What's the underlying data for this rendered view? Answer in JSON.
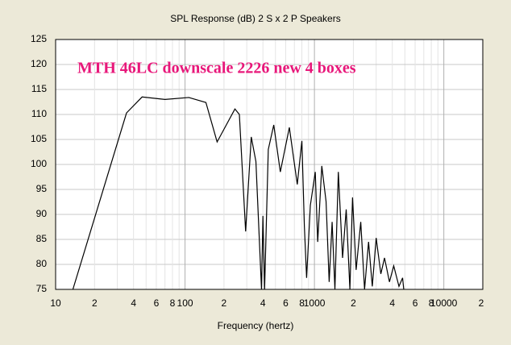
{
  "chart_data": {
    "type": "line",
    "title": "SPL Response (dB)   2 S x 2 P Speakers",
    "annotation": "MTH 46LC downscale 2226 new 4 boxes",
    "x_label": "Frequency (hertz)",
    "x_scale": "log",
    "grid": true,
    "x": [
      13.6,
      35.3,
      46.6,
      70,
      107,
      145,
      177,
      243,
      263,
      294,
      325,
      353,
      390,
      400,
      412,
      440,
      485,
      545,
      640,
      737,
      800,
      836,
      870,
      930,
      1015,
      1060,
      1140,
      1230,
      1300,
      1370,
      1440,
      1530,
      1650,
      1760,
      1880,
      1970,
      2100,
      2280,
      2440,
      2620,
      2800,
      3000,
      3260,
      3480,
      3800,
      4100,
      4500,
      4800,
      4900
    ],
    "series": [
      {
        "color": "#000000",
        "values": [
          75,
          110.3,
          113.5,
          113,
          113.4,
          112.4,
          104.5,
          111.1,
          110,
          86.6,
          105.5,
          100.6,
          75,
          89.7,
          75,
          103,
          107.9,
          98.5,
          107.4,
          96,
          104.7,
          87.7,
          77.3,
          91.8,
          98.5,
          84.5,
          99.7,
          92.6,
          76.5,
          88.5,
          75,
          98.5,
          81.3,
          91,
          75,
          93.4,
          78.9,
          88.5,
          75,
          84.5,
          75.6,
          85.3,
          78.1,
          81.3,
          76.5,
          79.7,
          75.6,
          77.3,
          75
        ]
      }
    ],
    "xlim": [
      10,
      20000
    ],
    "ylim": [
      75,
      125
    ],
    "xticks": [
      10,
      {
        "value": 20,
        "label": "2"
      },
      {
        "value": 40,
        "label": "4"
      },
      {
        "value": 60,
        "label": "6"
      },
      {
        "value": 80,
        "label": "8"
      },
      100,
      {
        "value": 200,
        "label": "2"
      },
      {
        "value": 400,
        "label": "4"
      },
      {
        "value": 600,
        "label": "6"
      },
      {
        "value": 800,
        "label": "8"
      },
      1000,
      {
        "value": 2000,
        "label": "2"
      },
      {
        "value": 4000,
        "label": "4"
      },
      {
        "value": 6000,
        "label": "6"
      },
      {
        "value": 8000,
        "label": "8"
      },
      10000,
      {
        "value": 20000,
        "label": "2"
      }
    ],
    "xminor": [
      30,
      50,
      70,
      90,
      300,
      500,
      700,
      900,
      3000,
      5000,
      7000,
      9000
    ],
    "yticks": [
      75,
      80,
      85,
      90,
      95,
      100,
      105,
      110,
      115,
      120,
      125
    ]
  }
}
